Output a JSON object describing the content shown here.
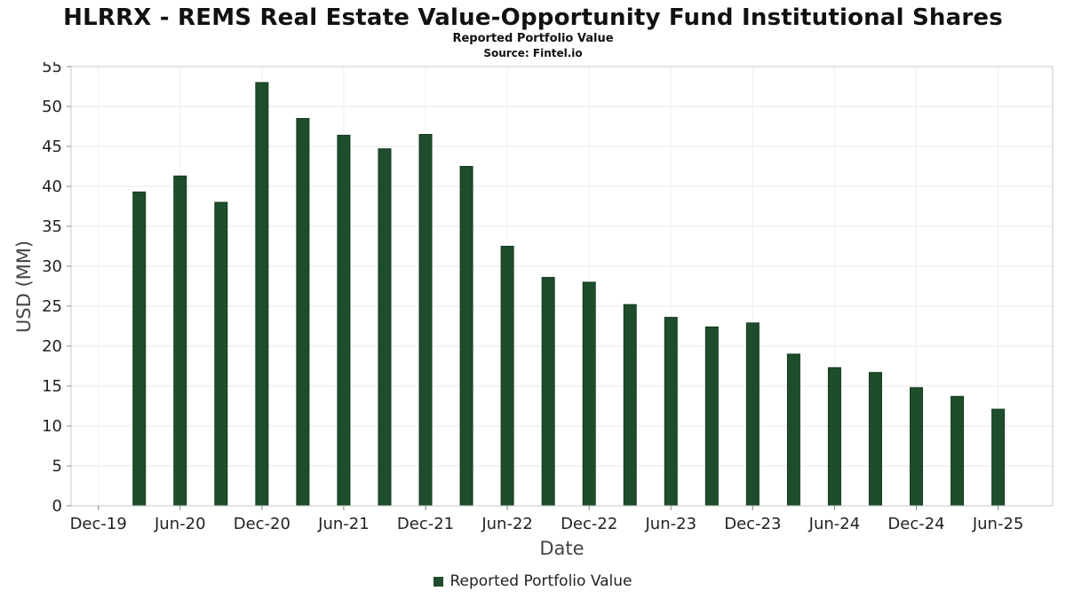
{
  "chart_data": {
    "type": "bar",
    "title": "HLRRX - REMS Real Estate Value-Opportunity Fund Institutional Shares",
    "subtitle": "Reported Portfolio Value",
    "source": "Source: Fintel.io",
    "xlabel": "Date",
    "ylabel": "USD (MM)",
    "legend_label": "Reported Portfolio Value",
    "ylim": [
      0,
      55
    ],
    "ytick_step": 5,
    "grid": true,
    "legend_position": "bottom-center",
    "colors": {
      "bar": "#1d4d2a",
      "bar_edge": "#143a1f",
      "h_grid": "#e7e7e7",
      "v_grid": "#efefef",
      "axis_border": "#c9c9c9",
      "tick_text": "#222222",
      "axis_label": "#444444"
    },
    "x_ticks": [
      {
        "label": "Dec-19",
        "month": 0
      },
      {
        "label": "Jun-20",
        "month": 6
      },
      {
        "label": "Dec-20",
        "month": 12
      },
      {
        "label": "Jun-21",
        "month": 18
      },
      {
        "label": "Dec-21",
        "month": 24
      },
      {
        "label": "Jun-22",
        "month": 30
      },
      {
        "label": "Dec-22",
        "month": 36
      },
      {
        "label": "Jun-23",
        "month": 42
      },
      {
        "label": "Dec-23",
        "month": 48
      },
      {
        "label": "Jun-24",
        "month": 54
      },
      {
        "label": "Dec-24",
        "month": 60
      },
      {
        "label": "Jun-25",
        "month": 66
      }
    ],
    "series": [
      {
        "name": "Reported Portfolio Value",
        "points": [
          {
            "month": 3,
            "value": 39.3
          },
          {
            "month": 6,
            "value": 41.3
          },
          {
            "month": 9,
            "value": 38.0
          },
          {
            "month": 12,
            "value": 53.0
          },
          {
            "month": 15,
            "value": 48.5
          },
          {
            "month": 18,
            "value": 46.4
          },
          {
            "month": 21,
            "value": 44.7
          },
          {
            "month": 24,
            "value": 46.5
          },
          {
            "month": 27,
            "value": 42.5
          },
          {
            "month": 30,
            "value": 32.5
          },
          {
            "month": 33,
            "value": 28.6
          },
          {
            "month": 36,
            "value": 28.0
          },
          {
            "month": 39,
            "value": 25.2
          },
          {
            "month": 42,
            "value": 23.6
          },
          {
            "month": 45,
            "value": 22.4
          },
          {
            "month": 48,
            "value": 22.9
          },
          {
            "month": 51,
            "value": 19.0
          },
          {
            "month": 54,
            "value": 17.3
          },
          {
            "month": 57,
            "value": 16.7
          },
          {
            "month": 60,
            "value": 14.8
          },
          {
            "month": 63,
            "value": 13.7
          },
          {
            "month": 66,
            "value": 12.1
          }
        ]
      }
    ]
  }
}
